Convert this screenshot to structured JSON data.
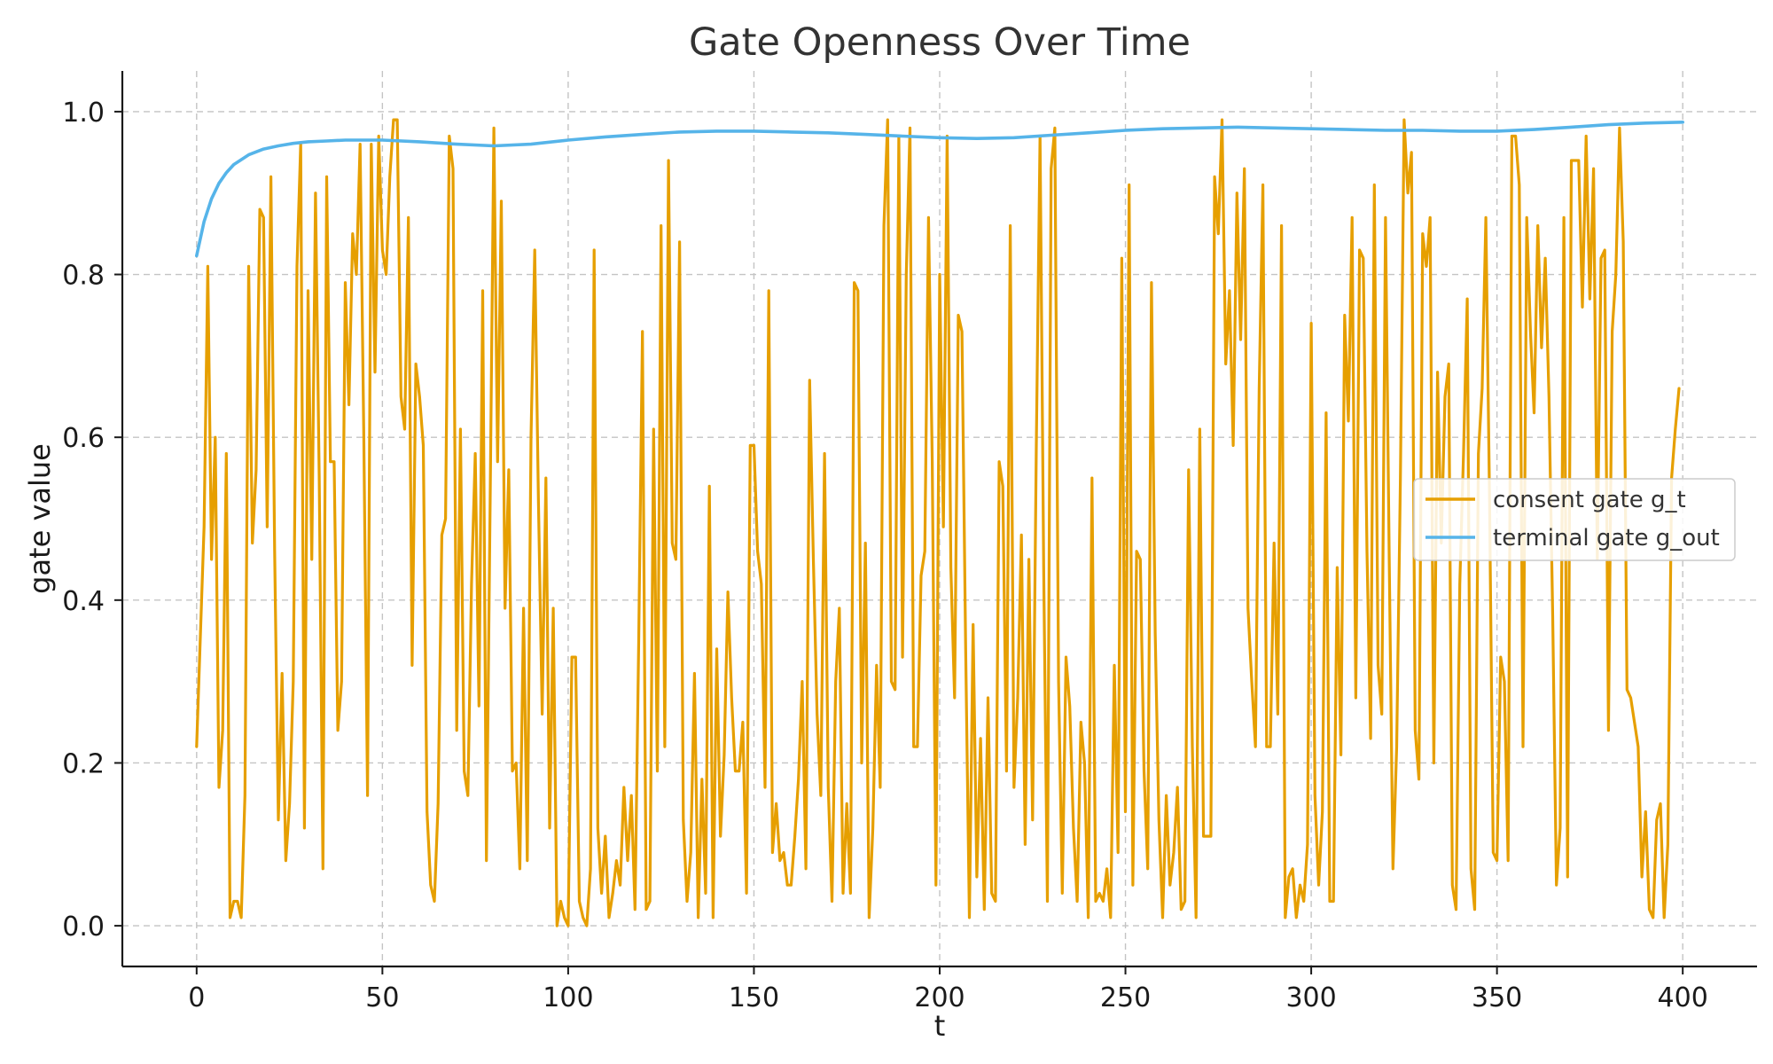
{
  "chart_data": {
    "type": "line",
    "title": "Gate Openness Over Time",
    "xlabel": "t",
    "ylabel": "gate value",
    "xlim": [
      -20,
      420
    ],
    "ylim": [
      -0.05,
      1.05
    ],
    "xticks": [
      0,
      50,
      100,
      150,
      200,
      250,
      300,
      350,
      400
    ],
    "yticks": [
      0.0,
      0.2,
      0.4,
      0.6,
      0.8,
      1.0
    ],
    "grid": true,
    "legend_position": "center-right",
    "series": [
      {
        "name": "consent gate g_t",
        "color": "#E69F00",
        "x": [
          0,
          2,
          3,
          4,
          5,
          6,
          7,
          8,
          9,
          10,
          11,
          12,
          13,
          14,
          15,
          16,
          17,
          18,
          19,
          20,
          21,
          22,
          23,
          24,
          25,
          26,
          27,
          28,
          29,
          30,
          31,
          32,
          33,
          34,
          35,
          36,
          37,
          38,
          39,
          40,
          41,
          42,
          43,
          44,
          45,
          46,
          47,
          48,
          49,
          50,
          51,
          52,
          53,
          54,
          55,
          56,
          57,
          58,
          59,
          60,
          61,
          62,
          63,
          64,
          65,
          66,
          67,
          68,
          69,
          70,
          71,
          72,
          73,
          74,
          75,
          76,
          77,
          78,
          79,
          80,
          81,
          82,
          83,
          84,
          85,
          86,
          87,
          88,
          89,
          90,
          91,
          92,
          93,
          94,
          95,
          96,
          97,
          98,
          99,
          100,
          101,
          102,
          103,
          104,
          105,
          106,
          107,
          108,
          109,
          110,
          111,
          112,
          113,
          114,
          115,
          116,
          117,
          118,
          119,
          120,
          121,
          122,
          123,
          124,
          125,
          126,
          127,
          128,
          129,
          130,
          131,
          132,
          133,
          134,
          135,
          136,
          137,
          138,
          139,
          140,
          141,
          142,
          143,
          144,
          145,
          146,
          147,
          148,
          149,
          150,
          151,
          152,
          153,
          154,
          155,
          156,
          157,
          158,
          159,
          160,
          161,
          162,
          163,
          164,
          165,
          166,
          167,
          168,
          169,
          170,
          171,
          172,
          173,
          174,
          175,
          176,
          177,
          178,
          179,
          180,
          181,
          182,
          183,
          184,
          185,
          186,
          187,
          188,
          189,
          190,
          191,
          192,
          193,
          194,
          195,
          196,
          197,
          198,
          199,
          200,
          201,
          202,
          203,
          204,
          205,
          206,
          207,
          208,
          209,
          210,
          211,
          212,
          213,
          214,
          215,
          216,
          217,
          218,
          219,
          220,
          221,
          222,
          223,
          224,
          225,
          226,
          227,
          228,
          229,
          230,
          231,
          232,
          233,
          234,
          235,
          236,
          237,
          238,
          239,
          240,
          241,
          242,
          243,
          244,
          245,
          246,
          247,
          248,
          249,
          250,
          251,
          252,
          253,
          254,
          255,
          256,
          257,
          258,
          259,
          260,
          261,
          262,
          263,
          264,
          265,
          266,
          267,
          268,
          269,
          270,
          271,
          272,
          273,
          274,
          275,
          276,
          277,
          278,
          279,
          280,
          281,
          282,
          283,
          284,
          285,
          286,
          287,
          288,
          289,
          290,
          291,
          292,
          293,
          294,
          295,
          296,
          297,
          298,
          299,
          300,
          301,
          302,
          303,
          304,
          305,
          306,
          307,
          308,
          309,
          310,
          311,
          312,
          313,
          314,
          315,
          316,
          317,
          318,
          319,
          320,
          321,
          322,
          323,
          324,
          325,
          326,
          327,
          328,
          329,
          330,
          331,
          332,
          333,
          334,
          335,
          336,
          337,
          338,
          339,
          340,
          341,
          342,
          343,
          344,
          345,
          346,
          347,
          348,
          349,
          350,
          351,
          352,
          353,
          354,
          355,
          356,
          357,
          358,
          359,
          360,
          361,
          362,
          363,
          364,
          365,
          366,
          367,
          368,
          369,
          370,
          371,
          372,
          373,
          374,
          375,
          376,
          377,
          378,
          379,
          380,
          381,
          382,
          383,
          384,
          385,
          386,
          387,
          388,
          389,
          390,
          391,
          392,
          393,
          394,
          395,
          396,
          397,
          398,
          399
        ],
        "y": [
          0.22,
          0.49,
          0.81,
          0.45,
          0.6,
          0.17,
          0.24,
          0.58,
          0.01,
          0.03,
          0.03,
          0.01,
          0.16,
          0.81,
          0.47,
          0.56,
          0.88,
          0.87,
          0.49,
          0.92,
          0.46,
          0.13,
          0.31,
          0.08,
          0.15,
          0.3,
          0.81,
          0.96,
          0.12,
          0.78,
          0.45,
          0.9,
          0.55,
          0.07,
          0.92,
          0.57,
          0.57,
          0.24,
          0.3,
          0.79,
          0.64,
          0.85,
          0.8,
          0.96,
          0.6,
          0.16,
          0.96,
          0.68,
          0.97,
          0.83,
          0.8,
          0.92,
          0.99,
          0.99,
          0.65,
          0.61,
          0.87,
          0.32,
          0.69,
          0.65,
          0.59,
          0.14,
          0.05,
          0.03,
          0.15,
          0.48,
          0.5,
          0.97,
          0.93,
          0.24,
          0.61,
          0.19,
          0.16,
          0.42,
          0.58,
          0.27,
          0.78,
          0.08,
          0.52,
          0.98,
          0.57,
          0.89,
          0.39,
          0.56,
          0.19,
          0.2,
          0.07,
          0.39,
          0.08,
          0.6,
          0.83,
          0.52,
          0.26,
          0.55,
          0.12,
          0.39,
          0.0,
          0.03,
          0.01,
          0.0,
          0.33,
          0.33,
          0.03,
          0.01,
          0.0,
          0.07,
          0.83,
          0.12,
          0.04,
          0.11,
          0.01,
          0.04,
          0.08,
          0.05,
          0.17,
          0.08,
          0.16,
          0.02,
          0.35,
          0.73,
          0.02,
          0.03,
          0.61,
          0.19,
          0.86,
          0.22,
          0.94,
          0.47,
          0.45,
          0.84,
          0.13,
          0.03,
          0.09,
          0.31,
          0.01,
          0.18,
          0.04,
          0.54,
          0.01,
          0.34,
          0.11,
          0.21,
          0.41,
          0.28,
          0.19,
          0.19,
          0.25,
          0.04,
          0.59,
          0.59,
          0.46,
          0.42,
          0.17,
          0.78,
          0.09,
          0.15,
          0.08,
          0.09,
          0.05,
          0.05,
          0.11,
          0.18,
          0.3,
          0.07,
          0.67,
          0.45,
          0.26,
          0.16,
          0.58,
          0.17,
          0.03,
          0.3,
          0.39,
          0.04,
          0.15,
          0.04,
          0.79,
          0.78,
          0.2,
          0.47,
          0.01,
          0.12,
          0.32,
          0.17,
          0.86,
          0.99,
          0.3,
          0.29,
          0.97,
          0.33,
          0.8,
          0.98,
          0.22,
          0.22,
          0.43,
          0.46,
          0.87,
          0.57,
          0.05,
          0.8,
          0.49,
          0.97,
          0.44,
          0.28,
          0.75,
          0.73,
          0.34,
          0.01,
          0.37,
          0.06,
          0.23,
          0.02,
          0.28,
          0.04,
          0.03,
          0.57,
          0.54,
          0.19,
          0.86,
          0.17,
          0.28,
          0.48,
          0.1,
          0.45,
          0.13,
          0.59,
          0.97,
          0.44,
          0.03,
          0.93,
          0.98,
          0.3,
          0.04,
          0.33,
          0.27,
          0.12,
          0.03,
          0.25,
          0.2,
          0.01,
          0.55,
          0.03,
          0.04,
          0.03,
          0.07,
          0.01,
          0.32,
          0.09,
          0.82,
          0.14,
          0.91,
          0.05,
          0.46,
          0.45,
          0.19,
          0.07,
          0.79,
          0.36,
          0.13,
          0.01,
          0.16,
          0.05,
          0.09,
          0.17,
          0.02,
          0.03,
          0.56,
          0.22,
          0.01,
          0.61,
          0.11,
          0.11,
          0.11,
          0.92,
          0.85,
          0.99,
          0.69,
          0.78,
          0.59,
          0.9,
          0.72,
          0.93,
          0.39,
          0.3,
          0.22,
          0.66,
          0.91,
          0.22,
          0.22,
          0.47,
          0.26,
          0.86,
          0.01,
          0.06,
          0.07,
          0.01,
          0.05,
          0.03,
          0.1,
          0.74,
          0.16,
          0.05,
          0.14,
          0.63,
          0.03,
          0.03,
          0.44,
          0.21,
          0.75,
          0.62,
          0.87,
          0.28,
          0.83,
          0.82,
          0.46,
          0.23,
          0.91,
          0.32,
          0.26,
          0.87,
          0.45,
          0.07,
          0.22,
          0.55,
          0.99,
          0.9,
          0.95,
          0.24,
          0.18,
          0.85,
          0.81,
          0.87,
          0.2,
          0.68,
          0.47,
          0.65,
          0.69,
          0.05,
          0.02,
          0.42,
          0.58,
          0.77,
          0.07,
          0.02,
          0.58,
          0.66,
          0.87,
          0.52,
          0.09,
          0.08,
          0.33,
          0.3,
          0.08,
          0.97,
          0.97,
          0.91,
          0.22,
          0.87,
          0.73,
          0.63,
          0.86,
          0.71,
          0.82,
          0.65,
          0.38,
          0.05,
          0.12,
          0.87,
          0.06,
          0.94,
          0.94,
          0.94,
          0.76,
          0.97,
          0.77,
          0.93,
          0.45,
          0.82,
          0.83,
          0.24,
          0.73,
          0.8,
          0.98,
          0.84,
          0.29,
          0.28,
          0.25,
          0.22,
          0.06,
          0.14,
          0.02,
          0.01,
          0.13,
          0.15,
          0.01,
          0.1,
          0.55,
          0.61,
          0.66
        ]
      },
      {
        "name": "terminal gate g_out",
        "color": "#56B4E9",
        "x": [
          0,
          2,
          4,
          6,
          8,
          10,
          14,
          18,
          22,
          26,
          30,
          35,
          40,
          50,
          60,
          70,
          80,
          90,
          100,
          110,
          120,
          130,
          140,
          150,
          160,
          170,
          180,
          190,
          200,
          210,
          220,
          230,
          240,
          250,
          260,
          270,
          280,
          290,
          300,
          310,
          320,
          330,
          340,
          350,
          360,
          370,
          380,
          390,
          400
        ],
        "y": [
          0.823,
          0.865,
          0.893,
          0.912,
          0.925,
          0.935,
          0.947,
          0.954,
          0.958,
          0.961,
          0.963,
          0.964,
          0.965,
          0.965,
          0.963,
          0.96,
          0.958,
          0.96,
          0.965,
          0.969,
          0.972,
          0.975,
          0.976,
          0.976,
          0.975,
          0.974,
          0.972,
          0.97,
          0.968,
          0.967,
          0.968,
          0.971,
          0.974,
          0.977,
          0.979,
          0.98,
          0.981,
          0.98,
          0.979,
          0.978,
          0.977,
          0.977,
          0.976,
          0.976,
          0.978,
          0.981,
          0.984,
          0.986,
          0.987
        ]
      }
    ]
  }
}
